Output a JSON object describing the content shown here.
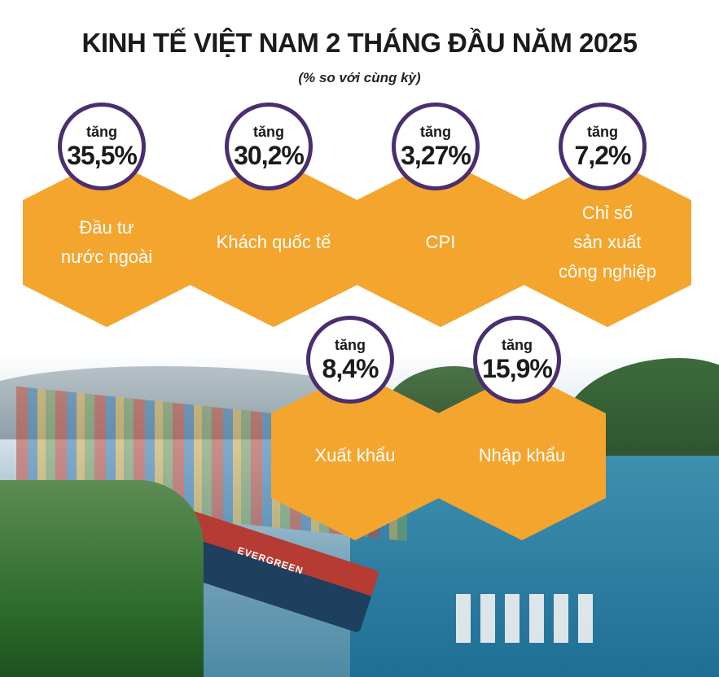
{
  "title": "KINH TẾ VIỆT NAM 2 THÁNG ĐẦU NĂM 2025",
  "subtitle": "(% so với cùng kỳ)",
  "photo_label": "EVERGREEN",
  "cards": [
    {
      "prefix": "tăng",
      "value": "35,5%",
      "label": "Đầu tư\nnước ngoài"
    },
    {
      "prefix": "tăng",
      "value": "30,2%",
      "label": "Khách quốc tế"
    },
    {
      "prefix": "tăng",
      "value": "3,27%",
      "label": "CPI"
    },
    {
      "prefix": "tăng",
      "value": "7,2%",
      "label": "Chỉ số\nsản xuất\ncông nghiệp"
    },
    {
      "prefix": "tăng",
      "value": "8,4%",
      "label": "Xuất khẩu"
    },
    {
      "prefix": "tăng",
      "value": "15,9%",
      "label": "Nhập khẩu"
    }
  ],
  "colors": {
    "hexagon": "#f4a52e",
    "circle_border": "#4a2e6f",
    "text": "#1b1b1b"
  }
}
